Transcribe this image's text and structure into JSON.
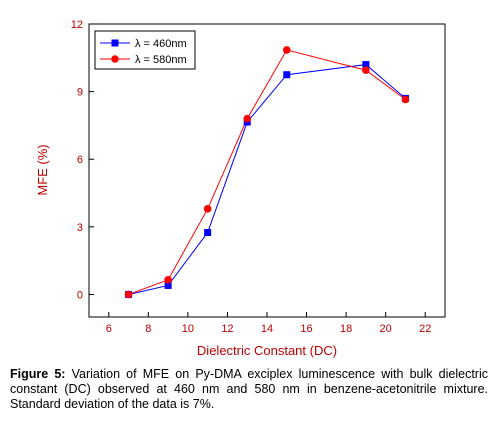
{
  "chart_data": {
    "type": "line",
    "xlabel": "Dielectric Constant (DC)",
    "ylabel": "MFE (%)",
    "xlim": [
      5,
      23
    ],
    "ylim": [
      -1,
      12
    ],
    "xticks": [
      6,
      8,
      10,
      12,
      14,
      16,
      18,
      20,
      22
    ],
    "yticks": [
      0,
      3,
      6,
      9,
      12
    ],
    "legend": "top-left",
    "series": [
      {
        "name": "λ = 460nm",
        "color": "#0000ff",
        "marker": "square",
        "x": [
          7,
          9,
          11,
          13,
          15,
          19,
          21
        ],
        "y": [
          0.0,
          0.4,
          2.75,
          7.65,
          9.75,
          10.2,
          8.7
        ]
      },
      {
        "name": "λ = 580nm",
        "color": "#ff0000",
        "marker": "circle",
        "x": [
          7,
          9,
          11,
          13,
          15,
          19,
          21
        ],
        "y": [
          0.0,
          0.65,
          3.8,
          7.8,
          10.85,
          9.95,
          8.65
        ]
      }
    ]
  },
  "caption": {
    "lead": "Figure 5:",
    "text": " Variation of MFE on Py-DMA exciplex luminescence with bulk dielectric constant (DC) observed at 460 nm and 580 nm in benzene-acetonitrile mixture. Standard deviation of the data is 7%."
  }
}
